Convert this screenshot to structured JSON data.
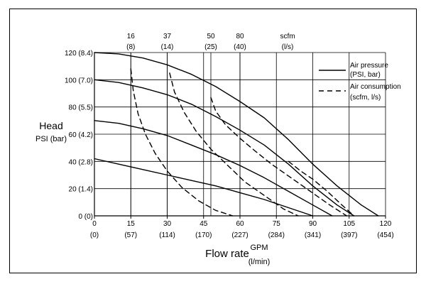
{
  "chart_data": {
    "type": "line",
    "title": "",
    "ylabel": "Head",
    "ylabel_unit": "PSI (bar)",
    "xlabel": "Flow rate",
    "xlabel_unit": "GPM",
    "xlabel_unit2": "(l/min)",
    "xlim": [
      0,
      120
    ],
    "ylim": [
      0,
      120
    ],
    "grid": true,
    "x_ticks": [
      0,
      15,
      30,
      45,
      60,
      75,
      90,
      105,
      120
    ],
    "x_ticks_secondary": [
      "(0)",
      "(57)",
      "(114)",
      "(170)",
      "(227)",
      "(284)",
      "(341)",
      "(397)",
      "(454)"
    ],
    "y_ticks": [
      0,
      20,
      40,
      60,
      80,
      100,
      120
    ],
    "y_tick_labels": [
      "0 (0)",
      "20 (1.4)",
      "40 (2.8)",
      "60 (4.2)",
      "80 (5.5)",
      "100 (7.0)",
      "120 (8.4)"
    ],
    "top_axis": {
      "label": "scfm",
      "label2": "(l/s)",
      "ticks": [
        {
          "x": 15,
          "scfm": "16",
          "ls": "(8)"
        },
        {
          "x": 30,
          "scfm": "37",
          "ls": "(14)"
        },
        {
          "x": 48,
          "scfm": "50",
          "ls": "(25)"
        },
        {
          "x": 60,
          "scfm": "80",
          "ls": "(40)"
        }
      ]
    },
    "legend": {
      "placement": "top-right",
      "items": [
        {
          "style": "solid",
          "label1": "Air pressure",
          "label2": "(PSI, bar)"
        },
        {
          "style": "dashed",
          "label1": "Air consumption",
          "label2": "(scfm, l/s)"
        }
      ]
    },
    "series": [
      {
        "style": "solid",
        "x": [
          0,
          10,
          20,
          30,
          40,
          50,
          60,
          70,
          80,
          90,
          100,
          110,
          117
        ],
        "y": [
          120,
          119,
          116,
          111,
          104,
          95,
          84,
          72,
          56,
          38,
          22,
          8,
          0
        ]
      },
      {
        "style": "solid",
        "x": [
          0,
          10,
          20,
          30,
          40,
          50,
          60,
          70,
          80,
          90,
          100,
          107
        ],
        "y": [
          100,
          98,
          94,
          89,
          82,
          73,
          63,
          52,
          38,
          22,
          8,
          0
        ]
      },
      {
        "style": "solid",
        "x": [
          0,
          10,
          20,
          30,
          40,
          50,
          60,
          70,
          80,
          90,
          98
        ],
        "y": [
          70,
          68,
          64,
          59,
          52,
          45,
          37,
          28,
          18,
          8,
          0
        ]
      },
      {
        "style": "solid",
        "x": [
          0,
          10,
          20,
          30,
          40,
          50,
          60,
          70,
          80,
          90
        ],
        "y": [
          42,
          38,
          34,
          30,
          26,
          22,
          17,
          12,
          6,
          0
        ]
      },
      {
        "style": "dashed",
        "x": [
          15,
          16,
          18,
          21,
          25,
          30,
          36,
          43,
          50,
          57
        ],
        "y": [
          108,
          92,
          75,
          60,
          46,
          33,
          21,
          11,
          4,
          0
        ]
      },
      {
        "style": "dashed",
        "x": [
          31,
          33,
          37,
          42,
          48,
          55,
          62,
          70,
          78,
          84
        ],
        "y": [
          105,
          91,
          76,
          62,
          49,
          37,
          25,
          15,
          5,
          0
        ]
      },
      {
        "style": "dashed",
        "x": [
          48,
          50,
          54,
          60,
          66,
          73,
          81,
          89,
          97,
          104
        ],
        "y": [
          87,
          77,
          67,
          57,
          48,
          38,
          28,
          18,
          8,
          0
        ]
      },
      {
        "style": "dashed",
        "x": [
          80,
          85,
          90,
          96,
          102,
          107
        ],
        "y": [
          40,
          33,
          27,
          18,
          8,
          0
        ]
      }
    ]
  }
}
